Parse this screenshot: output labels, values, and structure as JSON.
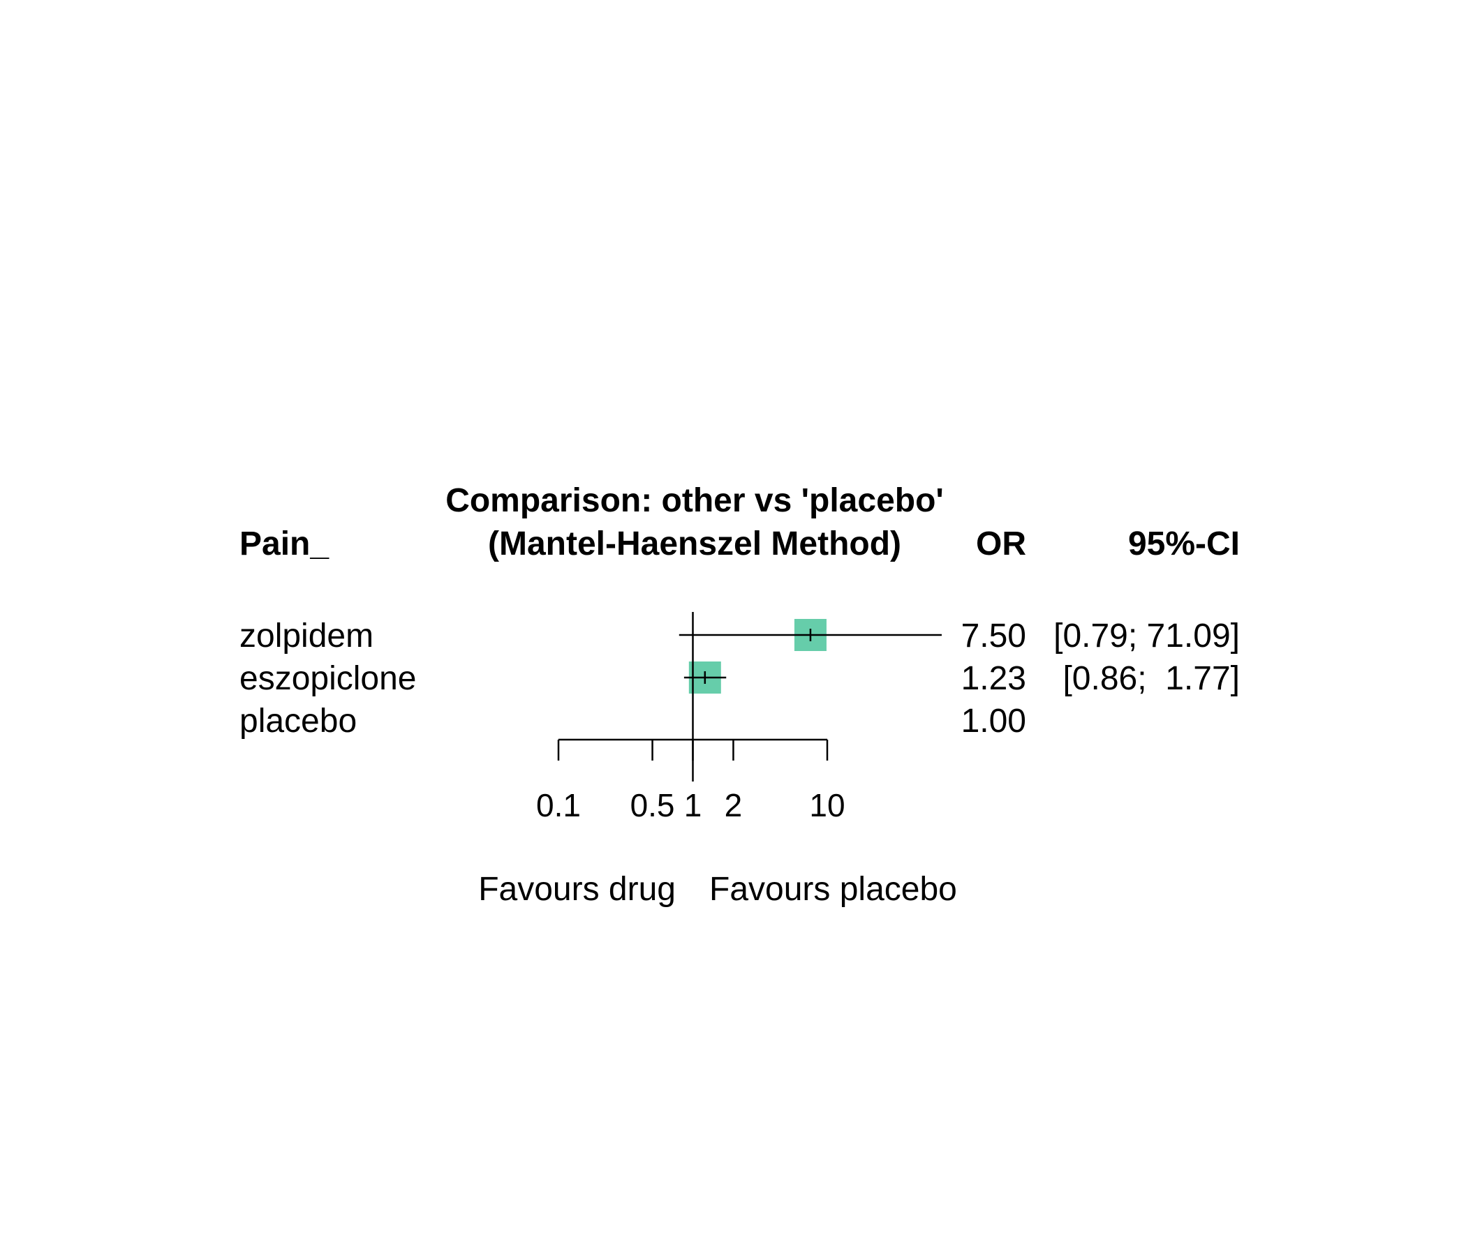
{
  "header": {
    "column_label": "Pain_",
    "comparison": "Comparison: other vs 'placebo'",
    "method": "(Mantel-Haenszel Method)",
    "or_header": "OR",
    "ci_header": "95%-CI"
  },
  "chart_data": {
    "type": "forest",
    "scale": "log",
    "x_reference": 1,
    "x_ticks": [
      0.1,
      0.5,
      1,
      2,
      10
    ],
    "x_tick_labels": [
      "0.1",
      "0.5",
      "1",
      "2",
      "10"
    ],
    "xlim": [
      0.1,
      10
    ],
    "rows": [
      {
        "label": "zolpidem",
        "or": 7.5,
        "lower": 0.79,
        "upper": 71.09,
        "or_text": "7.50",
        "ci_text": "[0.79; 71.09]"
      },
      {
        "label": "eszopiclone",
        "or": 1.23,
        "lower": 0.86,
        "upper": 1.77,
        "or_text": "1.23",
        "ci_text": "[0.86;  1.77]"
      },
      {
        "label": "placebo",
        "or": 1.0,
        "lower": null,
        "upper": null,
        "or_text": "1.00",
        "ci_text": ""
      }
    ],
    "marker_color": "#66cdaa",
    "favours_left": "Favours drug",
    "favours_right": "Favours placebo"
  }
}
